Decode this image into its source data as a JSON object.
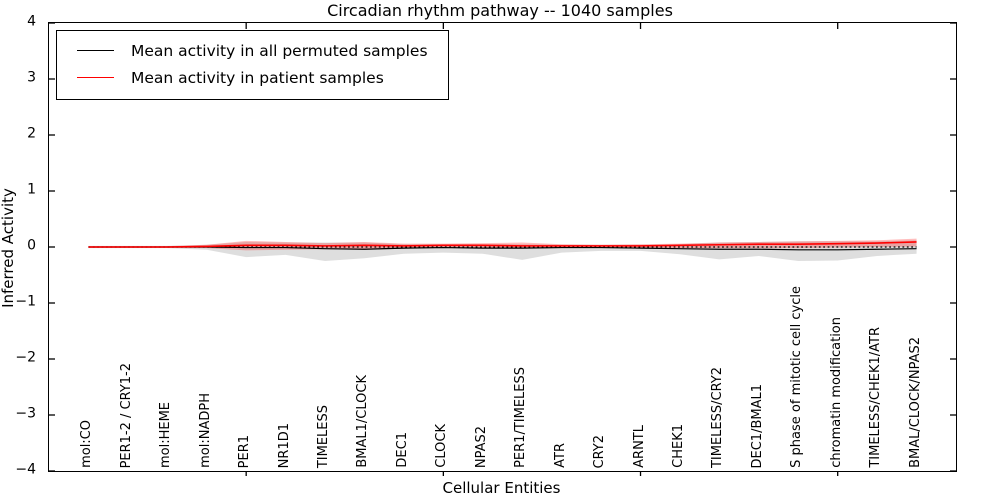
{
  "chart_data": {
    "type": "line",
    "title": "Circadian rhythm pathway -- 1040 samples",
    "xlabel": "Cellular Entities",
    "ylabel": "Inferred Activity",
    "xlim": [
      0,
      23
    ],
    "ylim": [
      -4,
      4
    ],
    "grid": false,
    "legend_position": "upper left",
    "ytick_labels": [
      "4",
      "3",
      "2",
      "1",
      "0",
      "−1",
      "−2",
      "−3",
      "−4"
    ],
    "ytick_values": [
      4,
      3,
      2,
      1,
      0,
      -1,
      -2,
      -3,
      -4
    ],
    "major_xtick_values": [
      5,
      10,
      15,
      20
    ],
    "x": [
      1,
      2,
      3,
      4,
      5,
      6,
      7,
      8,
      9,
      10,
      11,
      12,
      13,
      14,
      15,
      16,
      17,
      18,
      19,
      20,
      21,
      22
    ],
    "categories": [
      "mol:CO",
      "PER1-2 / CRY1-2",
      "mol:HEME",
      "mol:NADPH",
      "PER1",
      "NR1D1",
      "TIMELESS",
      "BMAL1/CLOCK",
      "DEC1",
      "CLOCK",
      "NPAS2",
      "PER1/TIMELESS",
      "ATR",
      "CRY2",
      "ARNTL",
      "CHEK1",
      "TIMELESS/CRY2",
      "DEC1/BMAL1",
      "S phase of mitotic cell cycle",
      "chromatin modification",
      "TIMELESS/CHEK1/ATR",
      "BMAL/CLOCK/NPAS2"
    ],
    "series": [
      {
        "name": "Mean activity in all permuted samples",
        "color": "#000000",
        "style": "solid",
        "values": [
          0,
          0,
          0,
          0,
          -0.01,
          -0.01,
          -0.03,
          -0.04,
          -0.02,
          -0.01,
          -0.02,
          -0.02,
          -0.01,
          -0.01,
          -0.02,
          -0.03,
          -0.04,
          -0.04,
          -0.05,
          -0.05,
          -0.04,
          -0.03
        ]
      },
      {
        "name": "Mean activity in patient samples",
        "color": "#ff0000",
        "style": "solid",
        "values": [
          0,
          0,
          0,
          0.01,
          0.03,
          0.03,
          0.02,
          0.03,
          0.02,
          0.03,
          0.03,
          0.02,
          0.02,
          0.02,
          0.02,
          0.03,
          0.04,
          0.05,
          0.05,
          0.06,
          0.07,
          0.09
        ]
      }
    ],
    "bands": [
      {
        "name": "permuted-samples-range",
        "color": "#999999",
        "opacity": 0.32,
        "upper": [
          0.02,
          0.02,
          0.02,
          0.04,
          0.09,
          0.08,
          0.08,
          0.08,
          0.05,
          0.05,
          0.05,
          0.05,
          0.04,
          0.04,
          0.04,
          0.05,
          0.08,
          0.09,
          0.1,
          0.1,
          0.1,
          0.12
        ],
        "lower": [
          -0.02,
          -0.02,
          -0.02,
          -0.05,
          -0.18,
          -0.14,
          -0.25,
          -0.2,
          -0.12,
          -0.1,
          -0.12,
          -0.23,
          -0.1,
          -0.07,
          -0.07,
          -0.13,
          -0.22,
          -0.16,
          -0.25,
          -0.24,
          -0.16,
          -0.12
        ]
      },
      {
        "name": "patient-samples-range",
        "color": "#ff0000",
        "opacity": 0.26,
        "upper": [
          0.015,
          0.015,
          0.015,
          0.04,
          0.11,
          0.09,
          0.07,
          0.09,
          0.06,
          0.06,
          0.07,
          0.08,
          0.05,
          0.04,
          0.05,
          0.06,
          0.08,
          0.09,
          0.1,
          0.11,
          0.12,
          0.15
        ],
        "lower": [
          -0.015,
          -0.015,
          -0.015,
          -0.02,
          -0.06,
          -0.05,
          -0.04,
          -0.05,
          -0.03,
          -0.02,
          -0.02,
          -0.03,
          -0.02,
          -0.02,
          -0.02,
          -0.02,
          -0.02,
          -0.02,
          -0.02,
          -0.01,
          0.0,
          0.01
        ]
      }
    ],
    "zero_line": {
      "y": 0,
      "style": "dotted",
      "color": "#000000"
    }
  },
  "colors": {
    "background": "#ffffff",
    "axis": "#000000",
    "permuted_line": "#000000",
    "patient_line": "#ff0000"
  }
}
